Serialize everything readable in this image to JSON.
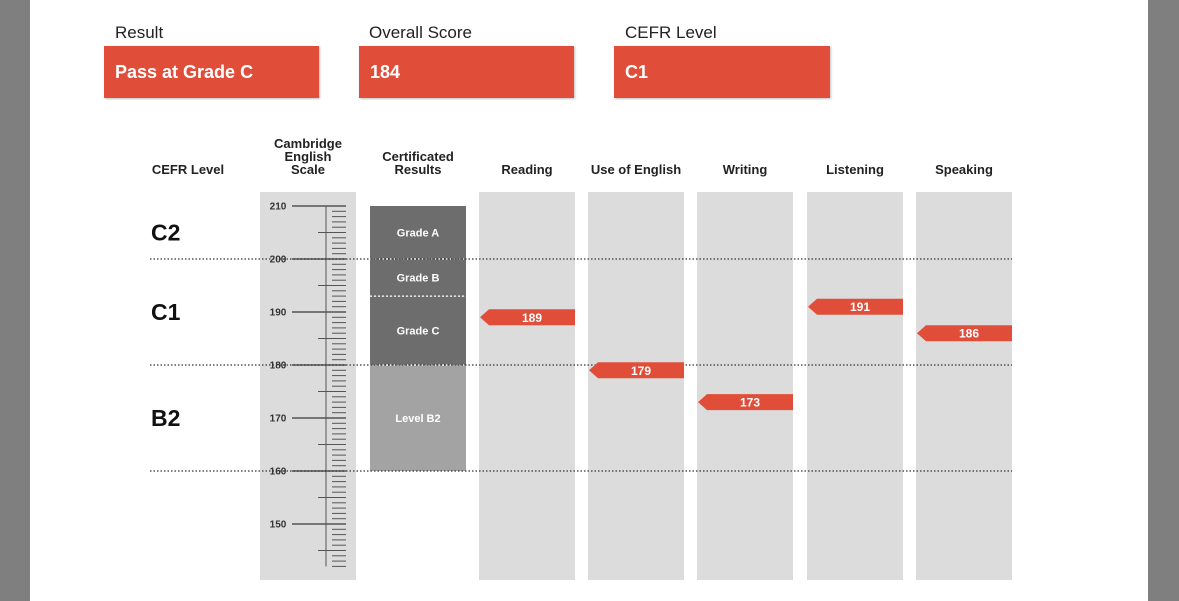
{
  "summary": {
    "result_label": "Result",
    "result_value": "Pass at Grade C",
    "score_label": "Overall Score",
    "score_value": "184",
    "cefr_label": "CEFR Level",
    "cefr_value": "C1",
    "accent_color": "#e04e39"
  },
  "chart_data": {
    "type": "bar",
    "title": "",
    "scale_header": "Cambridge English Scale",
    "cefr_header": "CEFR Level",
    "certificated_header": "Certificated Results",
    "ylim": [
      142,
      210
    ],
    "scale_ticks": [
      210,
      200,
      190,
      180,
      170,
      160,
      150
    ],
    "cefr_levels": [
      {
        "name": "C2",
        "center": 205
      },
      {
        "name": "C1",
        "center": 190
      },
      {
        "name": "B2",
        "center": 170
      }
    ],
    "cefr_boundaries": [
      200,
      180,
      160
    ],
    "certificated_bands": [
      {
        "label": "Grade A",
        "from": 200,
        "to": 210,
        "color": "#6d6d6d"
      },
      {
        "label": "Grade B",
        "from": 193,
        "to": 200,
        "color": "#6d6d6d"
      },
      {
        "label": "Grade C",
        "from": 180,
        "to": 193,
        "color": "#6d6d6d"
      },
      {
        "label": "Level B2",
        "from": 160,
        "to": 180,
        "color": "#a3a3a3"
      }
    ],
    "categories": [
      "Reading",
      "Use of English",
      "Writing",
      "Listening",
      "Speaking"
    ],
    "values": [
      189,
      179,
      173,
      191,
      186
    ]
  }
}
